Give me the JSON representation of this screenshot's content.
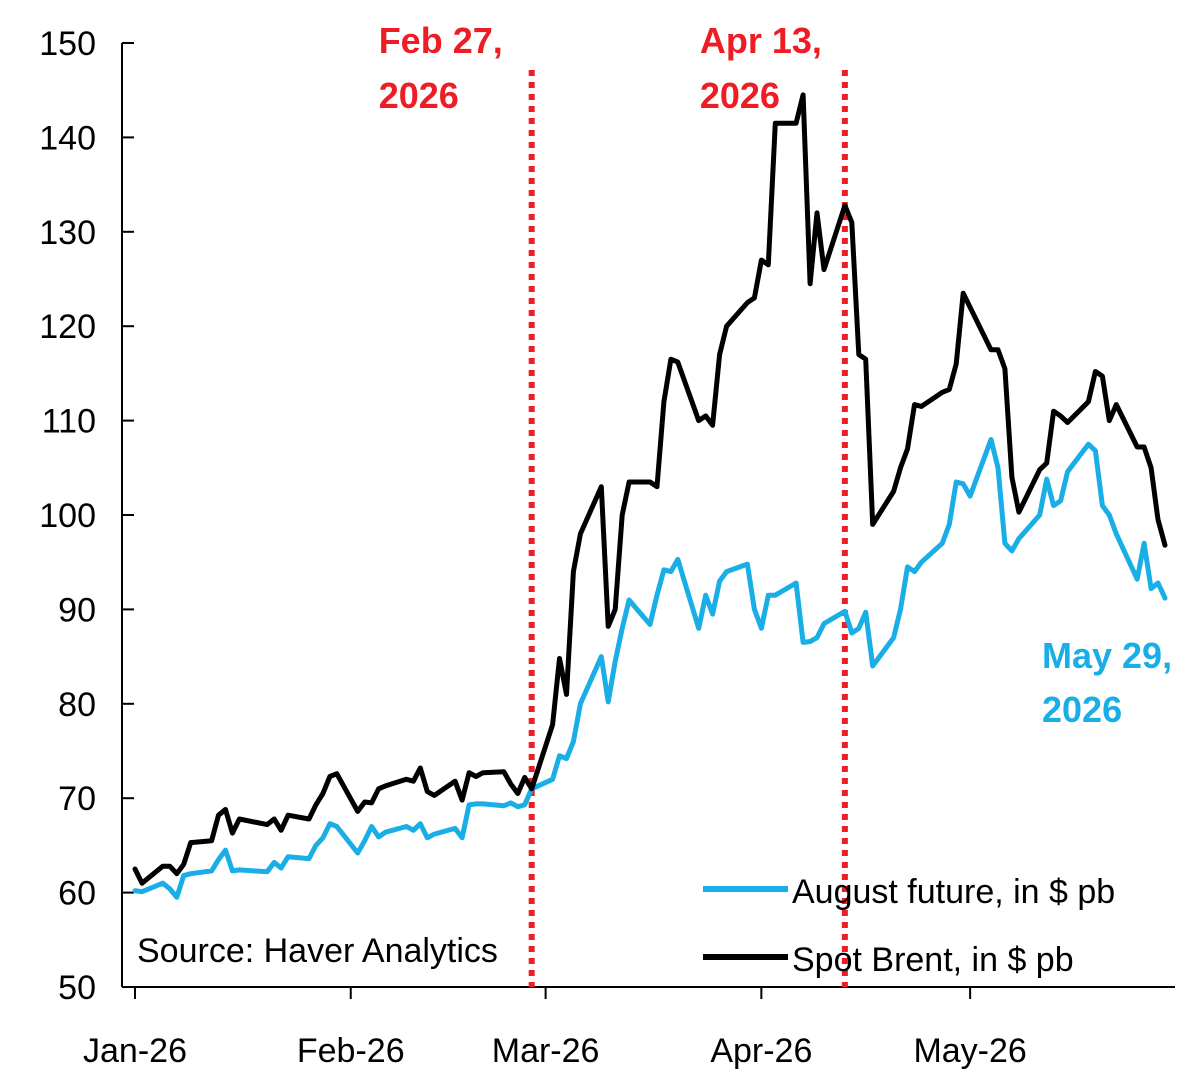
{
  "chart_data": {
    "type": "line",
    "title": "",
    "xlabel": "",
    "ylabel": "",
    "ylim": [
      50,
      150
    ],
    "y_ticks": [
      "50",
      "60",
      "70",
      "80",
      "90",
      "100",
      "110",
      "120",
      "130",
      "140",
      "150"
    ],
    "x_range": [
      "2026-01-01",
      "2026-05-29"
    ],
    "x_ticks": [
      {
        "date": "2026-01-01",
        "label": "Jan-26"
      },
      {
        "date": "2026-02-01",
        "label": "Feb-26"
      },
      {
        "date": "2026-03-01",
        "label": "Mar-26"
      },
      {
        "date": "2026-04-01",
        "label": "Apr-26"
      },
      {
        "date": "2026-05-01",
        "label": "May-26"
      }
    ],
    "grid": false,
    "legend_position": "bottom-right",
    "colors": {
      "august_future": "#1aaee6",
      "spot_brent": "#000000",
      "annotation_red": "#ee1c24",
      "annotation_blue": "#1aaee6"
    },
    "series": [
      {
        "name": "August future, in $ pb",
        "key": "august_future",
        "points": [
          [
            "2026-01-01",
            60.2
          ],
          [
            "2026-01-02",
            60.1
          ],
          [
            "2026-01-05",
            61.0
          ],
          [
            "2026-01-06",
            60.4
          ],
          [
            "2026-01-07",
            59.5
          ],
          [
            "2026-01-08",
            61.8
          ],
          [
            "2026-01-09",
            62.0
          ],
          [
            "2026-01-12",
            62.3
          ],
          [
            "2026-01-13",
            63.5
          ],
          [
            "2026-01-14",
            64.5
          ],
          [
            "2026-01-15",
            62.3
          ],
          [
            "2026-01-16",
            62.4
          ],
          [
            "2026-01-20",
            62.2
          ],
          [
            "2026-01-21",
            63.2
          ],
          [
            "2026-01-22",
            62.6
          ],
          [
            "2026-01-23",
            63.8
          ],
          [
            "2026-01-26",
            63.6
          ],
          [
            "2026-01-27",
            65.0
          ],
          [
            "2026-01-28",
            65.8
          ],
          [
            "2026-01-29",
            67.3
          ],
          [
            "2026-01-30",
            67.0
          ],
          [
            "2026-02-02",
            64.2
          ],
          [
            "2026-02-03",
            65.5
          ],
          [
            "2026-02-04",
            67.0
          ],
          [
            "2026-02-05",
            65.9
          ],
          [
            "2026-02-06",
            66.4
          ],
          [
            "2026-02-09",
            67.0
          ],
          [
            "2026-02-10",
            66.6
          ],
          [
            "2026-02-11",
            67.3
          ],
          [
            "2026-02-12",
            65.8
          ],
          [
            "2026-02-13",
            66.2
          ],
          [
            "2026-02-16",
            66.8
          ],
          [
            "2026-02-17",
            65.8
          ],
          [
            "2026-02-18",
            69.3
          ],
          [
            "2026-02-19",
            69.4
          ],
          [
            "2026-02-20",
            69.4
          ],
          [
            "2026-02-23",
            69.2
          ],
          [
            "2026-02-24",
            69.5
          ],
          [
            "2026-02-25",
            69.1
          ],
          [
            "2026-02-26",
            69.3
          ],
          [
            "2026-02-27",
            71.0
          ],
          [
            "2026-03-02",
            72.0
          ],
          [
            "2026-03-03",
            74.5
          ],
          [
            "2026-03-04",
            74.2
          ],
          [
            "2026-03-05",
            76.0
          ],
          [
            "2026-03-06",
            80.0
          ],
          [
            "2026-03-09",
            85.0
          ],
          [
            "2026-03-10",
            80.2
          ],
          [
            "2026-03-11",
            84.5
          ],
          [
            "2026-03-12",
            88.0
          ],
          [
            "2026-03-13",
            91.0
          ],
          [
            "2026-03-16",
            88.4
          ],
          [
            "2026-03-17",
            91.5
          ],
          [
            "2026-03-18",
            94.2
          ],
          [
            "2026-03-19",
            94.0
          ],
          [
            "2026-03-20",
            95.3
          ],
          [
            "2026-03-23",
            88.0
          ],
          [
            "2026-03-24",
            91.5
          ],
          [
            "2026-03-25",
            89.5
          ],
          [
            "2026-03-26",
            93.0
          ],
          [
            "2026-03-27",
            94.0
          ],
          [
            "2026-03-30",
            94.8
          ],
          [
            "2026-03-31",
            90.0
          ],
          [
            "2026-04-01",
            88.0
          ],
          [
            "2026-04-02",
            91.5
          ],
          [
            "2026-04-03",
            91.5
          ],
          [
            "2026-04-06",
            92.8
          ],
          [
            "2026-04-07",
            86.5
          ],
          [
            "2026-04-08",
            86.6
          ],
          [
            "2026-04-09",
            87.0
          ],
          [
            "2026-04-10",
            88.5
          ],
          [
            "2026-04-13",
            89.8
          ],
          [
            "2026-04-14",
            87.5
          ],
          [
            "2026-04-15",
            88.0
          ],
          [
            "2026-04-16",
            89.7
          ],
          [
            "2026-04-17",
            84.0
          ],
          [
            "2026-04-20",
            87.0
          ],
          [
            "2026-04-21",
            90.0
          ],
          [
            "2026-04-22",
            94.5
          ],
          [
            "2026-04-23",
            94.0
          ],
          [
            "2026-04-24",
            95.0
          ],
          [
            "2026-04-27",
            97.0
          ],
          [
            "2026-04-28",
            99.0
          ],
          [
            "2026-04-29",
            103.5
          ],
          [
            "2026-04-30",
            103.3
          ],
          [
            "2026-05-01",
            102.0
          ],
          [
            "2026-05-04",
            108.0
          ],
          [
            "2026-05-05",
            105.0
          ],
          [
            "2026-05-06",
            97.0
          ],
          [
            "2026-05-07",
            96.2
          ],
          [
            "2026-05-08",
            97.5
          ],
          [
            "2026-05-11",
            100.0
          ],
          [
            "2026-05-12",
            103.8
          ],
          [
            "2026-05-13",
            101.0
          ],
          [
            "2026-05-14",
            101.5
          ],
          [
            "2026-05-15",
            104.6
          ],
          [
            "2026-05-18",
            107.5
          ],
          [
            "2026-05-19",
            106.8
          ],
          [
            "2026-05-20",
            101.0
          ],
          [
            "2026-05-21",
            100.0
          ],
          [
            "2026-05-22",
            98.0
          ],
          [
            "2026-05-25",
            93.2
          ],
          [
            "2026-05-26",
            97.0
          ],
          [
            "2026-05-27",
            92.2
          ],
          [
            "2026-05-28",
            92.8
          ],
          [
            "2026-05-29",
            91.2
          ]
        ]
      },
      {
        "name": "Spot Brent, in $ pb",
        "key": "spot_brent",
        "points": [
          [
            "2026-01-01",
            62.5
          ],
          [
            "2026-01-02",
            61.0
          ],
          [
            "2026-01-05",
            62.8
          ],
          [
            "2026-01-06",
            62.8
          ],
          [
            "2026-01-07",
            62.0
          ],
          [
            "2026-01-08",
            63.0
          ],
          [
            "2026-01-09",
            65.3
          ],
          [
            "2026-01-12",
            65.5
          ],
          [
            "2026-01-13",
            68.2
          ],
          [
            "2026-01-14",
            68.8
          ],
          [
            "2026-01-15",
            66.3
          ],
          [
            "2026-01-16",
            67.8
          ],
          [
            "2026-01-20",
            67.2
          ],
          [
            "2026-01-21",
            67.8
          ],
          [
            "2026-01-22",
            66.6
          ],
          [
            "2026-01-23",
            68.2
          ],
          [
            "2026-01-26",
            67.8
          ],
          [
            "2026-01-27",
            69.3
          ],
          [
            "2026-01-28",
            70.5
          ],
          [
            "2026-01-29",
            72.3
          ],
          [
            "2026-01-30",
            72.6
          ],
          [
            "2026-02-02",
            68.6
          ],
          [
            "2026-02-03",
            69.6
          ],
          [
            "2026-02-04",
            69.5
          ],
          [
            "2026-02-05",
            71.0
          ],
          [
            "2026-02-06",
            71.3
          ],
          [
            "2026-02-09",
            72.0
          ],
          [
            "2026-02-10",
            71.8
          ],
          [
            "2026-02-11",
            73.2
          ],
          [
            "2026-02-12",
            70.7
          ],
          [
            "2026-02-13",
            70.3
          ],
          [
            "2026-02-16",
            71.8
          ],
          [
            "2026-02-17",
            69.8
          ],
          [
            "2026-02-18",
            72.7
          ],
          [
            "2026-02-19",
            72.3
          ],
          [
            "2026-02-20",
            72.7
          ],
          [
            "2026-02-23",
            72.8
          ],
          [
            "2026-02-24",
            71.5
          ],
          [
            "2026-02-25",
            70.5
          ],
          [
            "2026-02-26",
            72.2
          ],
          [
            "2026-02-27",
            71.0
          ],
          [
            "2026-03-02",
            77.8
          ],
          [
            "2026-03-03",
            84.8
          ],
          [
            "2026-03-04",
            81.0
          ],
          [
            "2026-03-05",
            94.0
          ],
          [
            "2026-03-06",
            98.0
          ],
          [
            "2026-03-09",
            103.0
          ],
          [
            "2026-03-10",
            88.2
          ],
          [
            "2026-03-11",
            90.0
          ],
          [
            "2026-03-12",
            100.0
          ],
          [
            "2026-03-13",
            103.5
          ],
          [
            "2026-03-16",
            103.5
          ],
          [
            "2026-03-17",
            103.0
          ],
          [
            "2026-03-18",
            112.0
          ],
          [
            "2026-03-19",
            116.5
          ],
          [
            "2026-03-20",
            116.2
          ],
          [
            "2026-03-23",
            110.0
          ],
          [
            "2026-03-24",
            110.5
          ],
          [
            "2026-03-25",
            109.5
          ],
          [
            "2026-03-26",
            117.0
          ],
          [
            "2026-03-27",
            120.0
          ],
          [
            "2026-03-30",
            122.5
          ],
          [
            "2026-03-31",
            123.0
          ],
          [
            "2026-04-01",
            127.0
          ],
          [
            "2026-04-02",
            126.5
          ],
          [
            "2026-04-03",
            141.5
          ],
          [
            "2026-04-06",
            141.5
          ],
          [
            "2026-04-07",
            144.5
          ],
          [
            "2026-04-08",
            124.5
          ],
          [
            "2026-04-09",
            132.0
          ],
          [
            "2026-04-10",
            126.0
          ],
          [
            "2026-04-13",
            132.8
          ],
          [
            "2026-04-14",
            131.0
          ],
          [
            "2026-04-15",
            117.0
          ],
          [
            "2026-04-16",
            116.5
          ],
          [
            "2026-04-17",
            99.0
          ],
          [
            "2026-04-20",
            102.5
          ],
          [
            "2026-04-21",
            105.0
          ],
          [
            "2026-04-22",
            107.0
          ],
          [
            "2026-04-23",
            111.7
          ],
          [
            "2026-04-24",
            111.5
          ],
          [
            "2026-04-27",
            113.0
          ],
          [
            "2026-04-28",
            113.3
          ],
          [
            "2026-04-29",
            116.0
          ],
          [
            "2026-04-30",
            123.5
          ],
          [
            "2026-05-01",
            122.0
          ],
          [
            "2026-05-04",
            117.5
          ],
          [
            "2026-05-05",
            117.5
          ],
          [
            "2026-05-06",
            115.5
          ],
          [
            "2026-05-07",
            104.0
          ],
          [
            "2026-05-08",
            100.3
          ],
          [
            "2026-05-11",
            104.8
          ],
          [
            "2026-05-12",
            105.5
          ],
          [
            "2026-05-13",
            111.0
          ],
          [
            "2026-05-14",
            110.5
          ],
          [
            "2026-05-15",
            109.8
          ],
          [
            "2026-05-18",
            112.0
          ],
          [
            "2026-05-19",
            115.2
          ],
          [
            "2026-05-20",
            114.7
          ],
          [
            "2026-05-21",
            110.0
          ],
          [
            "2026-05-22",
            111.7
          ],
          [
            "2026-05-25",
            107.2
          ],
          [
            "2026-05-26",
            107.2
          ],
          [
            "2026-05-27",
            105.0
          ],
          [
            "2026-05-28",
            99.5
          ],
          [
            "2026-05-29",
            96.8
          ]
        ]
      }
    ],
    "markers": [
      {
        "date": "2026-02-27",
        "label_line1": "Feb 27,",
        "label_line2": "2026"
      },
      {
        "date": "2026-04-13",
        "label_line1": "Apr 13,",
        "label_line2": "2026"
      }
    ],
    "end_annotation": {
      "date": "2026-05-29",
      "label_line1": "May 29,",
      "label_line2": "2026"
    },
    "source": "Source: Haver Analytics"
  }
}
